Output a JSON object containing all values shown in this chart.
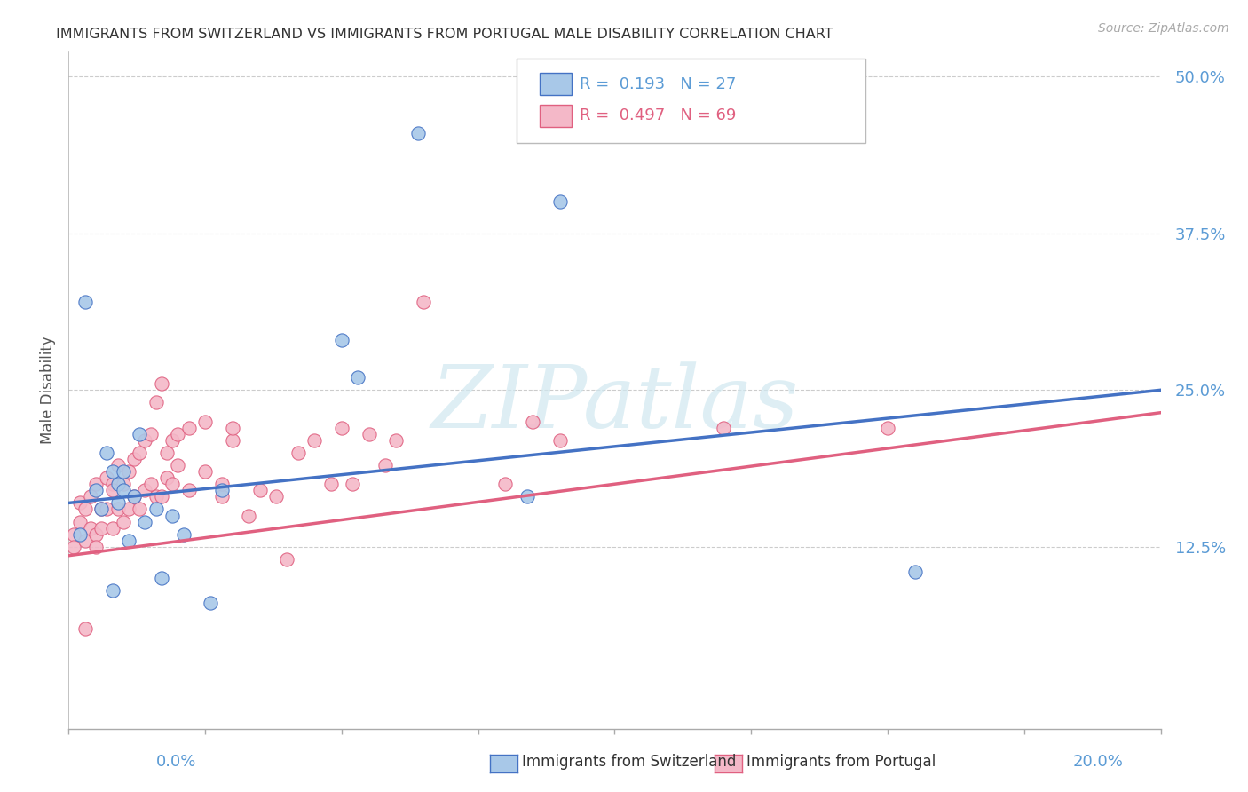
{
  "title": "IMMIGRANTS FROM SWITZERLAND VS IMMIGRANTS FROM PORTUGAL MALE DISABILITY CORRELATION CHART",
  "source": "Source: ZipAtlas.com",
  "ylabel": "Male Disability",
  "xlim": [
    0.0,
    0.2
  ],
  "ylim": [
    -0.02,
    0.52
  ],
  "color_swiss": "#a8c8e8",
  "color_portugal": "#f4b8c8",
  "color_swiss_line": "#4472c4",
  "color_portugal_line": "#e06080",
  "color_ytick": "#5b9bd5",
  "swiss_x": [
    0.003,
    0.005,
    0.006,
    0.007,
    0.008,
    0.009,
    0.01,
    0.01,
    0.011,
    0.012,
    0.013,
    0.014,
    0.016,
    0.017,
    0.019,
    0.021,
    0.026,
    0.028,
    0.05,
    0.053,
    0.064,
    0.084,
    0.09,
    0.155,
    0.002,
    0.009,
    0.008
  ],
  "swiss_y": [
    0.32,
    0.17,
    0.155,
    0.2,
    0.185,
    0.175,
    0.17,
    0.185,
    0.13,
    0.165,
    0.215,
    0.145,
    0.155,
    0.1,
    0.15,
    0.135,
    0.08,
    0.17,
    0.29,
    0.26,
    0.455,
    0.165,
    0.4,
    0.105,
    0.135,
    0.16,
    0.09
  ],
  "portugal_x": [
    0.001,
    0.001,
    0.002,
    0.002,
    0.003,
    0.003,
    0.003,
    0.004,
    0.004,
    0.005,
    0.005,
    0.005,
    0.006,
    0.006,
    0.007,
    0.007,
    0.008,
    0.008,
    0.008,
    0.009,
    0.009,
    0.01,
    0.01,
    0.011,
    0.011,
    0.012,
    0.012,
    0.013,
    0.013,
    0.014,
    0.014,
    0.015,
    0.015,
    0.016,
    0.016,
    0.017,
    0.017,
    0.018,
    0.018,
    0.019,
    0.019,
    0.02,
    0.02,
    0.022,
    0.022,
    0.025,
    0.025,
    0.028,
    0.028,
    0.03,
    0.03,
    0.033,
    0.035,
    0.038,
    0.04,
    0.042,
    0.045,
    0.048,
    0.05,
    0.052,
    0.055,
    0.058,
    0.06,
    0.065,
    0.08,
    0.085,
    0.09,
    0.12,
    0.15
  ],
  "portugal_y": [
    0.135,
    0.125,
    0.145,
    0.16,
    0.13,
    0.155,
    0.06,
    0.14,
    0.165,
    0.135,
    0.175,
    0.125,
    0.155,
    0.14,
    0.18,
    0.155,
    0.175,
    0.14,
    0.17,
    0.155,
    0.19,
    0.145,
    0.175,
    0.155,
    0.185,
    0.165,
    0.195,
    0.155,
    0.2,
    0.17,
    0.21,
    0.175,
    0.215,
    0.165,
    0.24,
    0.255,
    0.165,
    0.18,
    0.2,
    0.175,
    0.21,
    0.19,
    0.215,
    0.17,
    0.22,
    0.185,
    0.225,
    0.165,
    0.175,
    0.21,
    0.22,
    0.15,
    0.17,
    0.165,
    0.115,
    0.2,
    0.21,
    0.175,
    0.22,
    0.175,
    0.215,
    0.19,
    0.21,
    0.32,
    0.175,
    0.225,
    0.21,
    0.22,
    0.22
  ],
  "swiss_line_y0": 0.16,
  "swiss_line_y1": 0.25,
  "portugal_line_y0": 0.118,
  "portugal_line_y1": 0.232,
  "watermark_text": "ZIPatlas",
  "legend_text1": "R =  0.193   N = 27",
  "legend_text2": "R =  0.497   N = 69"
}
